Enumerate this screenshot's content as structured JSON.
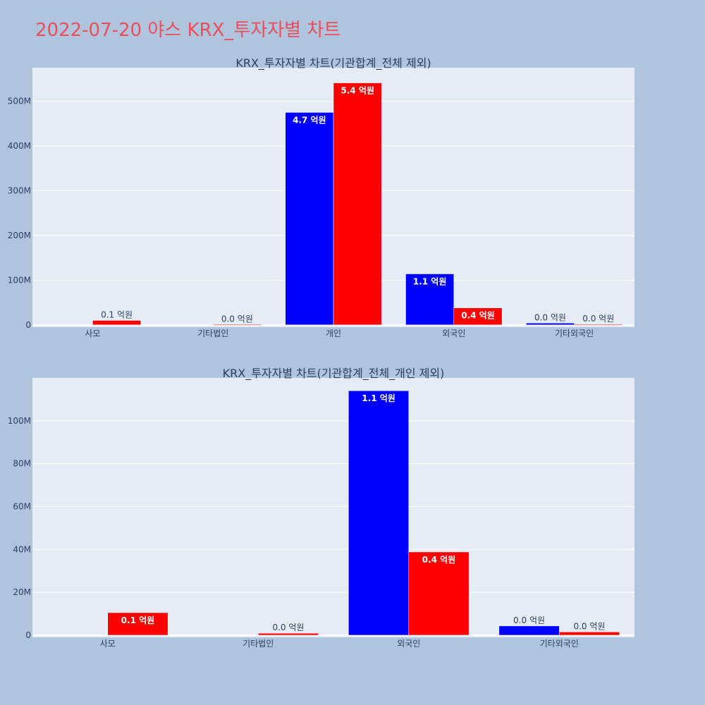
{
  "page": {
    "title": "2022-07-20 야스 KRX_투자자별 차트"
  },
  "colors": {
    "series1": "#0000ff",
    "series2": "#ff0000",
    "plot_bg": "#e5ecf6",
    "page_bg": "#b0c4de",
    "title": "#e8505b"
  },
  "chart_data": [
    {
      "type": "bar",
      "title": "KRX_투자자별 차트(기관합계_전체 제외)",
      "categories": [
        "사모",
        "기타법인",
        "개인",
        "외국인",
        "기타외국인"
      ],
      "ylim": [
        -5000000,
        575000000
      ],
      "yticks": [
        0,
        100000000,
        200000000,
        300000000,
        400000000,
        500000000
      ],
      "ytick_labels": [
        "0",
        "100M",
        "200M",
        "300M",
        "400M",
        "500M"
      ],
      "grid": true,
      "series": [
        {
          "values": [
            0,
            0,
            475000000,
            114000000,
            4000000
          ],
          "labels": [
            "",
            "",
            "4.7 억원",
            "1.1 억원",
            "0.0 억원"
          ]
        },
        {
          "values": [
            10000000,
            800000,
            541000000,
            38000000,
            1300000
          ],
          "labels": [
            "0.1 억원",
            "0.0 억원",
            "5.4 억원",
            "0.4 억원",
            "0.0 억원"
          ]
        }
      ]
    },
    {
      "type": "bar",
      "title": "KRX_투자자별 차트(기관합계_전체_개인 제외)",
      "categories": [
        "사모",
        "기타법인",
        "외국인",
        "기타외국인"
      ],
      "ylim": [
        -1000000,
        120000000
      ],
      "yticks": [
        0,
        20000000,
        40000000,
        60000000,
        80000000,
        100000000
      ],
      "ytick_labels": [
        "0",
        "20M",
        "40M",
        "60M",
        "80M",
        "100M"
      ],
      "grid": true,
      "series": [
        {
          "values": [
            0,
            0,
            114000000,
            4300000
          ],
          "labels": [
            "",
            "",
            "1.1 억원",
            "0.0 억원"
          ]
        },
        {
          "values": [
            10500000,
            900000,
            38800000,
            1500000
          ],
          "labels": [
            "0.1 억원",
            "0.0 억원",
            "0.4 억원",
            "0.0 억원"
          ]
        }
      ]
    }
  ]
}
